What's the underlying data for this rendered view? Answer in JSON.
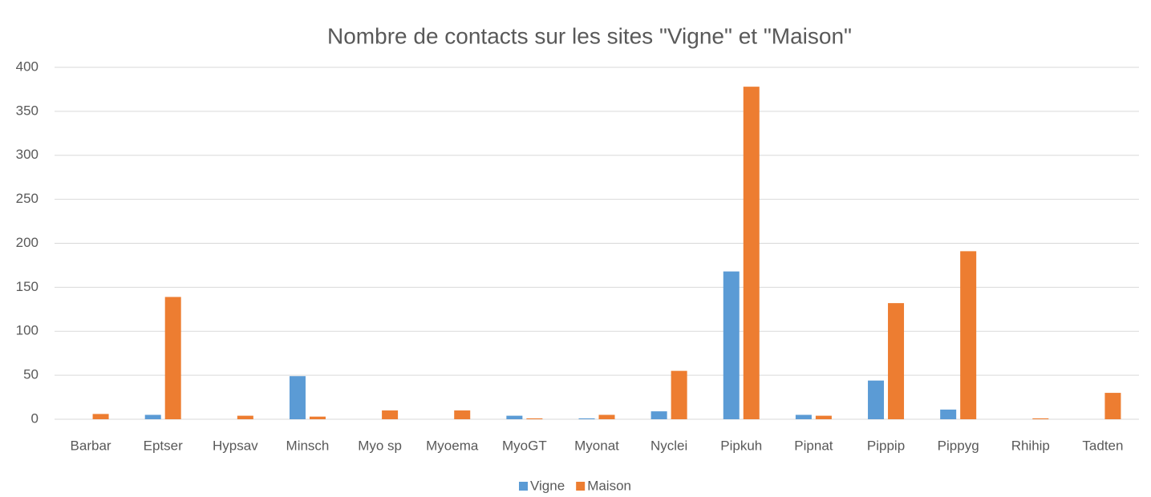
{
  "chart_data": {
    "type": "bar",
    "title": "Nombre de contacts sur les sites \"Vigne\" et \"Maison\"",
    "categories": [
      "Barbar",
      "Eptser",
      "Hypsav",
      "Minsch",
      "Myo sp",
      "Myoema",
      "MyoGT",
      "Myonat",
      "Nyclei",
      "Pipkuh",
      "Pipnat",
      "Pippip",
      "Pippyg",
      "Rhihip",
      "Tadten"
    ],
    "series": [
      {
        "name": "Vigne",
        "color": "#5b9bd5",
        "values": [
          0,
          5,
          0,
          49,
          0,
          0,
          4,
          1,
          9,
          168,
          5,
          44,
          11,
          0,
          0
        ]
      },
      {
        "name": "Maison",
        "color": "#ed7d31",
        "values": [
          6,
          139,
          4,
          3,
          10,
          10,
          1,
          5,
          55,
          378,
          4,
          132,
          191,
          1,
          30
        ]
      }
    ],
    "ylim": [
      0,
      400
    ],
    "yticks": [
      0,
      50,
      100,
      150,
      200,
      250,
      300,
      350,
      400
    ],
    "grid": true,
    "legend": "bottom"
  }
}
